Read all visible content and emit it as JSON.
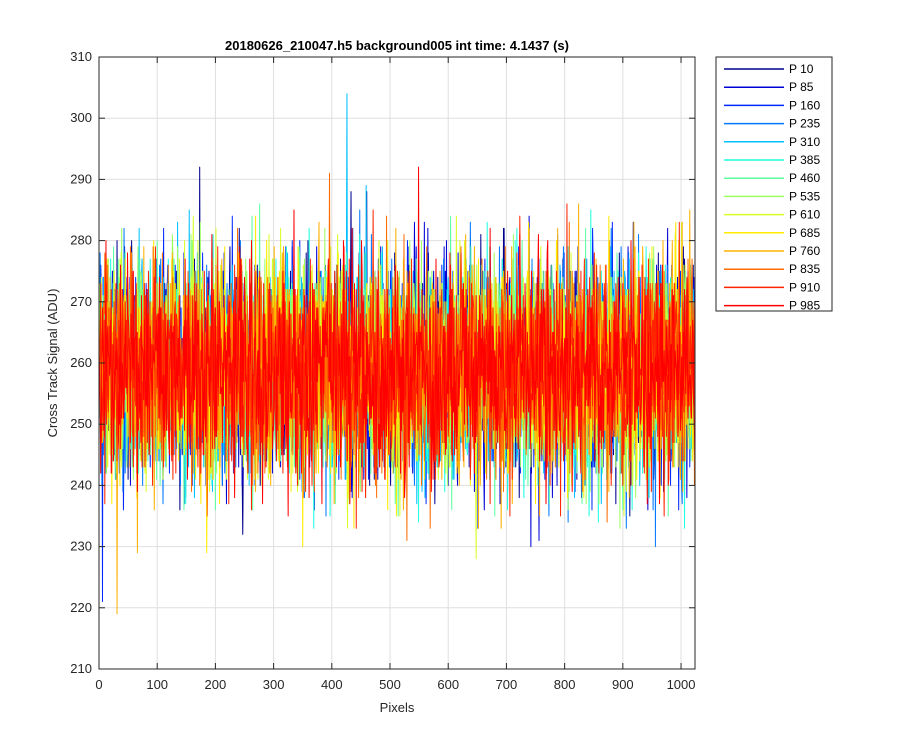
{
  "chart_data": {
    "type": "line",
    "title": "20180626_210047.h5  background005   int time: 4.1437 (s)",
    "xlabel": "Pixels",
    "ylabel": "Cross Track Signal (ADU)",
    "xlim": [
      0,
      1024
    ],
    "ylim": [
      210,
      310
    ],
    "x_ticks": [
      0,
      100,
      200,
      300,
      400,
      500,
      600,
      700,
      800,
      900,
      1000
    ],
    "y_ticks": [
      210,
      220,
      230,
      240,
      250,
      260,
      270,
      280,
      290,
      300,
      310
    ],
    "grid": true,
    "legend_position": "outside-right",
    "noise_model": {
      "mean": 259,
      "std": 8.5,
      "num_points": 1024,
      "min_observed": 219,
      "max_observed": 304
    },
    "notable_points": [
      {
        "x": 425,
        "y": 304
      },
      {
        "x": 30,
        "y": 219
      },
      {
        "x": 5,
        "y": 221
      }
    ],
    "series": [
      {
        "name": "P 10",
        "color": "#00008f"
      },
      {
        "name": "P 85",
        "color": "#0000d6"
      },
      {
        "name": "P 160",
        "color": "#0028ff"
      },
      {
        "name": "P 235",
        "color": "#0078ff"
      },
      {
        "name": "P 310",
        "color": "#00c0ff"
      },
      {
        "name": "P 385",
        "color": "#1effe0"
      },
      {
        "name": "P 460",
        "color": "#5cffa2"
      },
      {
        "name": "P 535",
        "color": "#9eff60"
      },
      {
        "name": "P 610",
        "color": "#d8ff26"
      },
      {
        "name": "P 685",
        "color": "#ffec00"
      },
      {
        "name": "P 760",
        "color": "#ffb000"
      },
      {
        "name": "P 835",
        "color": "#ff6c00"
      },
      {
        "name": "P 910",
        "color": "#ff2400"
      },
      {
        "name": "P 985",
        "color": "#ff0000"
      }
    ]
  }
}
